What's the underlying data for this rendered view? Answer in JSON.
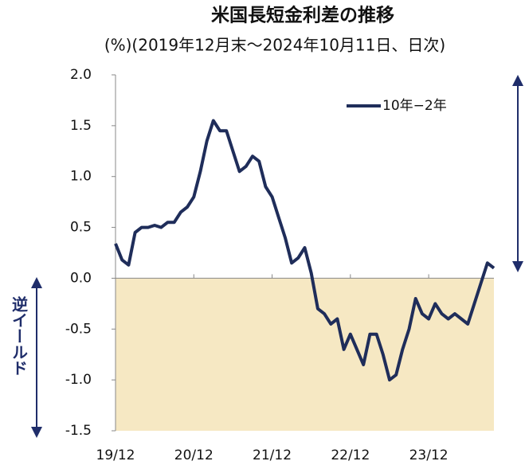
{
  "chart_data": {
    "type": "line",
    "title": "米国長短金利差の推移",
    "subtitle": "(%)(2019年12月末～2024年10月11日、日次)",
    "annotation": "逆イールド",
    "x": [
      "2019-12",
      "2020-01",
      "2020-02",
      "2020-03",
      "2020-04",
      "2020-05",
      "2020-06",
      "2020-07",
      "2020-08",
      "2020-09",
      "2020-10",
      "2020-11",
      "2020-12",
      "2021-01",
      "2021-02",
      "2021-03",
      "2021-04",
      "2021-05",
      "2021-06",
      "2021-07",
      "2021-08",
      "2021-09",
      "2021-10",
      "2021-11",
      "2021-12",
      "2022-01",
      "2022-02",
      "2022-03",
      "2022-04",
      "2022-05",
      "2022-06",
      "2022-07",
      "2022-08",
      "2022-09",
      "2022-10",
      "2022-11",
      "2022-12",
      "2023-01",
      "2023-02",
      "2023-03",
      "2023-04",
      "2023-05",
      "2023-06",
      "2023-07",
      "2023-08",
      "2023-09",
      "2023-10",
      "2023-11",
      "2023-12",
      "2024-01",
      "2024-02",
      "2024-03",
      "2024-04",
      "2024-05",
      "2024-06",
      "2024-07",
      "2024-08",
      "2024-09",
      "2024-10"
    ],
    "series": [
      {
        "name": "10年−2年",
        "color": "#1f2d5a",
        "values": [
          0.34,
          0.18,
          0.13,
          0.45,
          0.5,
          0.5,
          0.52,
          0.5,
          0.55,
          0.55,
          0.65,
          0.7,
          0.8,
          1.05,
          1.35,
          1.55,
          1.45,
          1.45,
          1.25,
          1.05,
          1.1,
          1.2,
          1.15,
          0.9,
          0.8,
          0.6,
          0.4,
          0.15,
          0.2,
          0.3,
          0.05,
          -0.3,
          -0.35,
          -0.45,
          -0.4,
          -0.7,
          -0.55,
          -0.7,
          -0.85,
          -0.55,
          -0.55,
          -0.75,
          -1.0,
          -0.95,
          -0.7,
          -0.5,
          -0.2,
          -0.35,
          -0.4,
          -0.25,
          -0.35,
          -0.4,
          -0.35,
          -0.4,
          -0.45,
          -0.25,
          -0.05,
          0.15,
          0.1
        ]
      }
    ],
    "xlim": [
      "2019-12",
      "2024-10"
    ],
    "xticks": [
      {
        "value": "2019-12",
        "label": "19/12"
      },
      {
        "value": "2020-12",
        "label": "20/12"
      },
      {
        "value": "2021-12",
        "label": "21/12"
      },
      {
        "value": "2022-12",
        "label": "22/12"
      },
      {
        "value": "2023-12",
        "label": "23/12"
      }
    ],
    "ylim": [
      -1.5,
      2.0
    ],
    "yticks": [
      {
        "value": 2.0,
        "label": "2.0"
      },
      1.5,
      {
        "value": 1.0,
        "label": "1.0"
      },
      0.5,
      {
        "value": 0.0,
        "label": "0.0"
      },
      -0.5,
      {
        "value": -1.0,
        "label": "-1.0"
      },
      -1.5
    ],
    "shade_color": "#f6e8c3",
    "legend": "upper right"
  }
}
